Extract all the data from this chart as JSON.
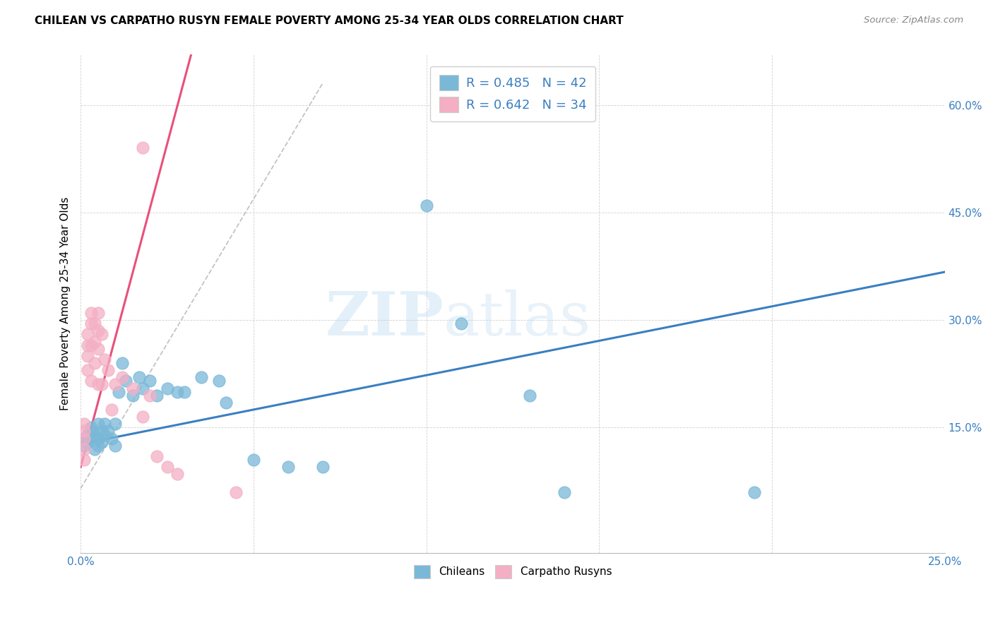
{
  "title": "CHILEAN VS CARPATHO RUSYN FEMALE POVERTY AMONG 25-34 YEAR OLDS CORRELATION CHART",
  "source": "Source: ZipAtlas.com",
  "ylabel": "Female Poverty Among 25-34 Year Olds",
  "xlim": [
    0.0,
    0.25
  ],
  "ylim": [
    -0.025,
    0.67
  ],
  "blue_color": "#7ab8d8",
  "pink_color": "#f4afc5",
  "blue_line_color": "#3a7fc1",
  "pink_line_color": "#e8507a",
  "watermark_zip": "ZIP",
  "watermark_atlas": "atlas",
  "chilean_x": [
    0.001,
    0.001,
    0.002,
    0.002,
    0.003,
    0.003,
    0.003,
    0.004,
    0.004,
    0.005,
    0.005,
    0.005,
    0.006,
    0.006,
    0.007,
    0.007,
    0.008,
    0.009,
    0.01,
    0.01,
    0.011,
    0.012,
    0.013,
    0.015,
    0.017,
    0.018,
    0.02,
    0.022,
    0.025,
    0.028,
    0.03,
    0.035,
    0.04,
    0.042,
    0.05,
    0.06,
    0.07,
    0.1,
    0.11,
    0.13,
    0.14,
    0.195
  ],
  "chilean_y": [
    0.135,
    0.125,
    0.14,
    0.13,
    0.15,
    0.145,
    0.135,
    0.12,
    0.14,
    0.155,
    0.135,
    0.125,
    0.145,
    0.13,
    0.155,
    0.14,
    0.145,
    0.135,
    0.155,
    0.125,
    0.2,
    0.24,
    0.215,
    0.195,
    0.22,
    0.205,
    0.215,
    0.195,
    0.205,
    0.2,
    0.2,
    0.22,
    0.215,
    0.185,
    0.105,
    0.095,
    0.095,
    0.46,
    0.295,
    0.195,
    0.06,
    0.06
  ],
  "rusyn_x": [
    0.001,
    0.001,
    0.001,
    0.001,
    0.001,
    0.002,
    0.002,
    0.002,
    0.002,
    0.003,
    0.003,
    0.003,
    0.003,
    0.004,
    0.004,
    0.004,
    0.005,
    0.005,
    0.005,
    0.005,
    0.006,
    0.006,
    0.007,
    0.008,
    0.009,
    0.01,
    0.012,
    0.015,
    0.018,
    0.02,
    0.022,
    0.025,
    0.028,
    0.045
  ],
  "rusyn_y": [
    0.155,
    0.145,
    0.135,
    0.12,
    0.105,
    0.28,
    0.265,
    0.25,
    0.23,
    0.31,
    0.295,
    0.265,
    0.215,
    0.295,
    0.27,
    0.24,
    0.31,
    0.285,
    0.26,
    0.21,
    0.28,
    0.21,
    0.245,
    0.23,
    0.175,
    0.21,
    0.22,
    0.205,
    0.165,
    0.195,
    0.11,
    0.095,
    0.085,
    0.06
  ],
  "rusyn_outlier_x": [
    0.018
  ],
  "rusyn_outlier_y": [
    0.54
  ],
  "dash_line_x": [
    0.0,
    0.07
  ],
  "dash_line_y": [
    0.065,
    0.63
  ]
}
